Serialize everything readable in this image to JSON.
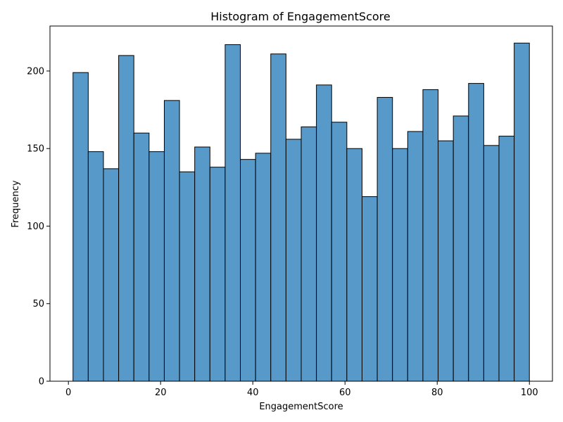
{
  "chart_data": {
    "type": "bar",
    "title": "Histogram of EngagementScore",
    "xlabel": "EngagementScore",
    "ylabel": "Frequency",
    "bin_edges": [
      1,
      4.3,
      7.6,
      10.9,
      14.2,
      17.5,
      20.8,
      24.1,
      27.4,
      30.7,
      34,
      37.3,
      40.6,
      43.9,
      47.2,
      50.5,
      53.8,
      57.1,
      60.4,
      63.7,
      67,
      70.3,
      73.6,
      76.9,
      80.2,
      83.5,
      86.8,
      90.1,
      93.4,
      96.7,
      100
    ],
    "values": [
      199,
      148,
      137,
      210,
      160,
      148,
      181,
      135,
      151,
      138,
      217,
      143,
      147,
      211,
      156,
      164,
      191,
      167,
      150,
      119,
      183,
      150,
      161,
      188,
      155,
      171,
      192,
      152,
      158,
      218
    ],
    "xlim": [
      -4,
      105
    ],
    "ylim": [
      0,
      229
    ],
    "xticks": [
      0,
      20,
      40,
      60,
      80,
      100
    ],
    "yticks": [
      0,
      50,
      100,
      150,
      200
    ],
    "bar_color": "#5799c9",
    "edge_color": "#000000",
    "grid": false,
    "legend": false
  }
}
